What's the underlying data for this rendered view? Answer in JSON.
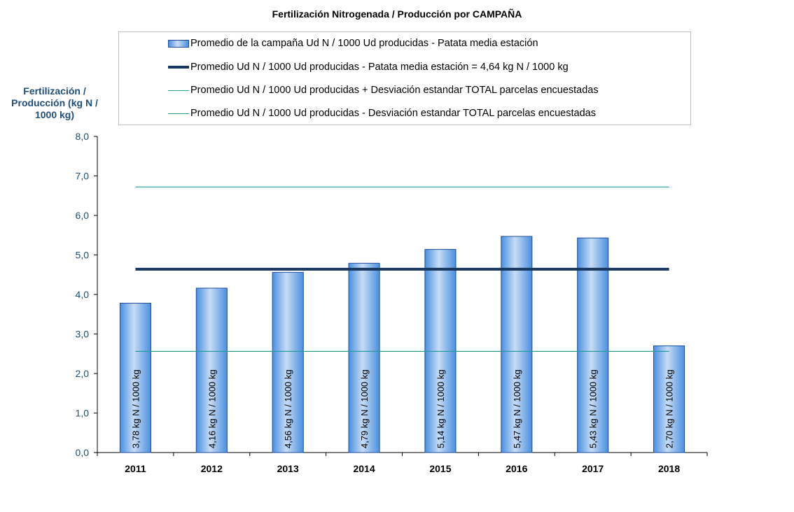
{
  "chart_data": {
    "type": "bar",
    "title": "Fertilización Nitrogenada / Producción por CAMPAÑA",
    "ylabel": "Fertilización / Producción (kg N / 1000 kg)",
    "xlabel": "",
    "categories": [
      "2011",
      "2012",
      "2013",
      "2014",
      "2015",
      "2016",
      "2017",
      "2018"
    ],
    "series": [
      {
        "name": "Promedio de la campaña Ud N / 1000 Ud producidas - Patata media estación",
        "values": [
          3.78,
          4.16,
          4.56,
          4.79,
          5.14,
          5.47,
          5.43,
          2.7
        ],
        "labels": [
          "3,78 kg N / 1000 kg",
          "4,16 kg N / 1000 kg",
          "4,56 kg N / 1000 kg",
          "4,79 kg N / 1000 kg",
          "5,14 kg N / 1000 kg",
          "5,47 kg N / 1000 kg",
          "5,43 kg N / 1000 kg",
          "2,70 kg N / 1000 kg"
        ]
      }
    ],
    "reference_lines": [
      {
        "name": "Promedio Ud N / 1000 Ud producidas - Patata media estación = 4,64 kg N / 1000 kg",
        "value": 4.64,
        "color": "#17375e",
        "style": "thick"
      },
      {
        "name": "Promedio Ud N / 1000 Ud producidas + Desviación estandar TOTAL parcelas encuestadas",
        "value": 6.72,
        "color": "#2a9d9b",
        "style": "thin"
      },
      {
        "name": "Promedio Ud N / 1000 Ud producidas - Desviación estandar TOTAL parcelas encuestadas",
        "value": 2.56,
        "color": "#2a9d9b",
        "style": "thin"
      }
    ],
    "ylim": [
      0,
      8
    ],
    "yticks": [
      "0,0",
      "1,0",
      "2,0",
      "3,0",
      "4,0",
      "5,0",
      "6,0",
      "7,0",
      "8,0"
    ],
    "grid": false,
    "legend_position": "top",
    "colors": {
      "bar": "#4a8fe0",
      "bar_light": "#c7dcf5",
      "bar_edge": "#1f4e9a",
      "axis_text": "#1f4e79"
    }
  }
}
